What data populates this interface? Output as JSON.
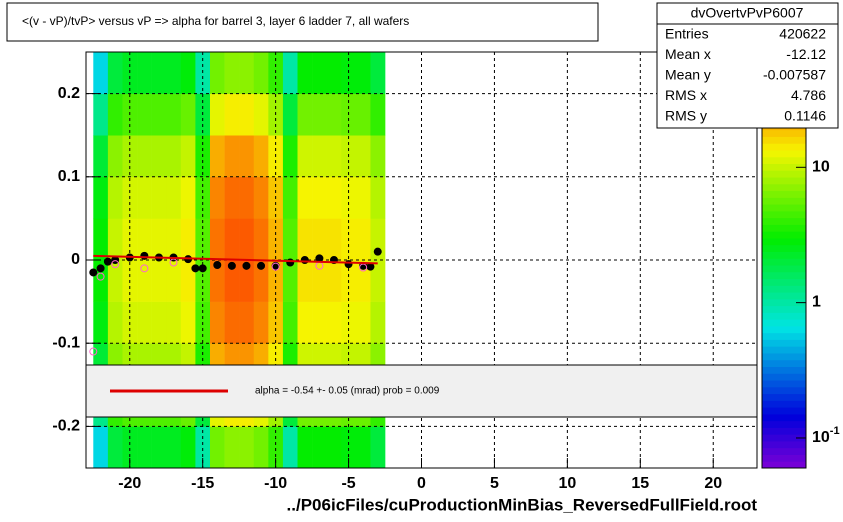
{
  "chart_data": {
    "type": "heatmap",
    "title": "<(v - vP)/tvP>  versus   vP => alpha for barrel 3, layer 6 ladder 7, all wafers",
    "xlabel": "../P06icFiles/cuProductionMinBias_ReversedFullField.root",
    "xlim": [
      -23,
      23
    ],
    "ylim": [
      -0.25,
      0.25
    ],
    "xticks": [
      -20,
      -15,
      -10,
      -5,
      0,
      5,
      10,
      15,
      20
    ],
    "yticks": [
      -0.2,
      -0.1,
      0,
      0.1,
      0.2
    ],
    "grid": true,
    "zlog": true,
    "zlim": [
      0.06,
      60
    ],
    "zticks": [
      {
        "value": 10,
        "label": "10"
      },
      {
        "value": 1,
        "label": "1"
      },
      {
        "value": 0.1,
        "label": "10",
        "exponent": "-1"
      }
    ],
    "xbins": [
      -22.5,
      -21.5,
      -20.5,
      -19.5,
      -18.5,
      -17.5,
      -16.5,
      -15.5,
      -14.5,
      -13.5,
      -12.5,
      -11.5,
      -10.5,
      -9.5,
      -8.5,
      -7.5,
      -6.5,
      -5.5,
      -4.5,
      -3.5,
      -2.5
    ],
    "ybins": [
      -0.25,
      -0.2,
      -0.15,
      -0.1,
      -0.05,
      0,
      0.05,
      0.1,
      0.15,
      0.2,
      0.25
    ],
    "z": [
      [
        0.6,
        2,
        2.4,
        2.4,
        2.4,
        2.4,
        2.8,
        1,
        6,
        7,
        7,
        6,
        4,
        1,
        3,
        3,
        3,
        2.8,
        2.8,
        2
      ],
      [
        1.2,
        4,
        4.8,
        4.8,
        4.8,
        4.8,
        5.6,
        2,
        12,
        14,
        14,
        12,
        8,
        2,
        6,
        6,
        6,
        5.6,
        5.6,
        4
      ],
      [
        2.1,
        7,
        8.4,
        8.4,
        8.4,
        8.4,
        9.8,
        3.5,
        21,
        24.5,
        24.5,
        21,
        14,
        3.5,
        10.5,
        10.5,
        10.5,
        9.8,
        9.8,
        7
      ],
      [
        2.7,
        9,
        10.8,
        10.8,
        10.8,
        10.8,
        12.6,
        4.5,
        27,
        31.5,
        31.5,
        27,
        18,
        4.5,
        13.5,
        13.5,
        13.5,
        12.6,
        12.6,
        9
      ],
      [
        3,
        10,
        12,
        12,
        12,
        12,
        14,
        5,
        30,
        35,
        35,
        30,
        20,
        5,
        15,
        15,
        15,
        14,
        14,
        10
      ],
      [
        3,
        10,
        12,
        12,
        12,
        12,
        14,
        5,
        30,
        35,
        35,
        30,
        20,
        5,
        15,
        15,
        15,
        14,
        14,
        10
      ],
      [
        2.7,
        9,
        10.8,
        10.8,
        10.8,
        10.8,
        12.6,
        4.5,
        27,
        31.5,
        31.5,
        27,
        18,
        4.5,
        13.5,
        13.5,
        13.5,
        12.6,
        12.6,
        9
      ],
      [
        2.1,
        7,
        8.4,
        8.4,
        8.4,
        8.4,
        9.8,
        3.5,
        21,
        24.5,
        24.5,
        21,
        14,
        3.5,
        10.5,
        10.5,
        10.5,
        9.8,
        9.8,
        7
      ],
      [
        1.2,
        4,
        4.8,
        4.8,
        4.8,
        4.8,
        5.6,
        2,
        12,
        14,
        14,
        12,
        8,
        2,
        6,
        6,
        6,
        5.6,
        5.6,
        4
      ],
      [
        0.6,
        2,
        2.4,
        2.4,
        2.4,
        2.4,
        2.8,
        1,
        6,
        7,
        7,
        6,
        4,
        1,
        3,
        3,
        3,
        2.8,
        2.8,
        2
      ]
    ],
    "series": [
      {
        "color": "#000000",
        "x": [
          -22.5,
          -22,
          -21.5,
          -21,
          -20,
          -19,
          -18,
          -17,
          -16,
          -15.5,
          -15,
          -14,
          -13,
          -12,
          -11,
          -10,
          -9,
          -8,
          -7,
          -6,
          -5,
          -4,
          -3.5,
          -3
        ],
        "values": [
          -0.015,
          -0.01,
          -0.002,
          0,
          0.003,
          0.005,
          0.003,
          0.003,
          0.001,
          -0.01,
          -0.01,
          -0.006,
          -0.007,
          -0.007,
          -0.007,
          -0.007,
          -0.003,
          0,
          0.002,
          0,
          -0.005,
          -0.007,
          -0.008,
          0.01
        ]
      },
      {
        "color": "#ff66cc",
        "x": [
          -22.5,
          -22,
          -21,
          -19,
          -17,
          -10,
          -7,
          -4
        ],
        "values": [
          -0.11,
          -0.02,
          -0.005,
          -0.01,
          -0.003,
          -0.008,
          -0.007,
          -0.009
        ]
      }
    ],
    "fit": {
      "color": "#dd0000",
      "x": [
        -22.5,
        -3
      ],
      "y": [
        0.005,
        -0.004
      ],
      "label": "alpha =   -0.54 +-  0.05 (mrad) prob = 0.009"
    },
    "stats": {
      "name": "dvOvertvPvP6007",
      "rows": [
        [
          "Entries",
          "420622"
        ],
        [
          "Mean x",
          "-12.12"
        ],
        [
          "Mean y",
          "-0.007587"
        ],
        [
          "RMS x",
          "4.786"
        ],
        [
          "RMS y",
          "0.1146"
        ]
      ]
    }
  }
}
